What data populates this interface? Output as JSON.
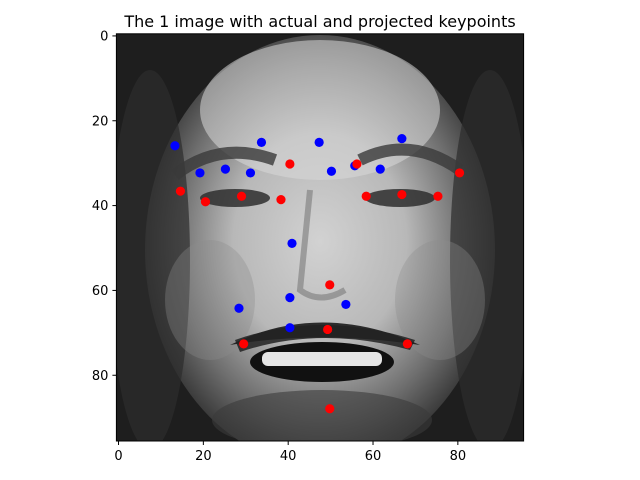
{
  "chart_data": {
    "type": "scatter",
    "title": "The 1 image with actual and projected keypoints",
    "xlabel": "",
    "ylabel": "",
    "xlim": [
      -0.5,
      95.5
    ],
    "ylim": [
      95.5,
      -0.5
    ],
    "y_inverted": true,
    "x_ticks": [
      0,
      20,
      40,
      60,
      80
    ],
    "y_ticks": [
      0,
      20,
      40,
      60,
      80
    ],
    "background_image": "grayscale-face-photo",
    "grid": false,
    "legend": "none",
    "series": [
      {
        "color": "#0000ff",
        "points": [
          {
            "x": 13.3,
            "y": 25.9
          },
          {
            "x": 19.2,
            "y": 32.3
          },
          {
            "x": 25.2,
            "y": 31.4
          },
          {
            "x": 31.1,
            "y": 32.3
          },
          {
            "x": 33.7,
            "y": 25.1
          },
          {
            "x": 47.3,
            "y": 25.1
          },
          {
            "x": 50.2,
            "y": 31.9
          },
          {
            "x": 55.7,
            "y": 30.6
          },
          {
            "x": 61.7,
            "y": 31.4
          },
          {
            "x": 66.8,
            "y": 24.2
          },
          {
            "x": 40.9,
            "y": 48.9
          },
          {
            "x": 40.4,
            "y": 61.7
          },
          {
            "x": 28.4,
            "y": 64.2
          },
          {
            "x": 53.6,
            "y": 63.3
          },
          {
            "x": 40.4,
            "y": 68.8
          }
        ]
      },
      {
        "color": "#ff0000",
        "points": [
          {
            "x": 14.6,
            "y": 36.6
          },
          {
            "x": 20.5,
            "y": 39.1
          },
          {
            "x": 29.0,
            "y": 37.8
          },
          {
            "x": 38.3,
            "y": 38.6
          },
          {
            "x": 40.4,
            "y": 30.2
          },
          {
            "x": 56.2,
            "y": 30.2
          },
          {
            "x": 58.4,
            "y": 37.8
          },
          {
            "x": 66.8,
            "y": 37.4
          },
          {
            "x": 75.3,
            "y": 37.8
          },
          {
            "x": 80.4,
            "y": 32.3
          },
          {
            "x": 49.8,
            "y": 58.7
          },
          {
            "x": 49.3,
            "y": 69.2
          },
          {
            "x": 29.5,
            "y": 72.6
          },
          {
            "x": 68.1,
            "y": 72.6
          },
          {
            "x": 49.8,
            "y": 87.9
          }
        ]
      }
    ]
  }
}
